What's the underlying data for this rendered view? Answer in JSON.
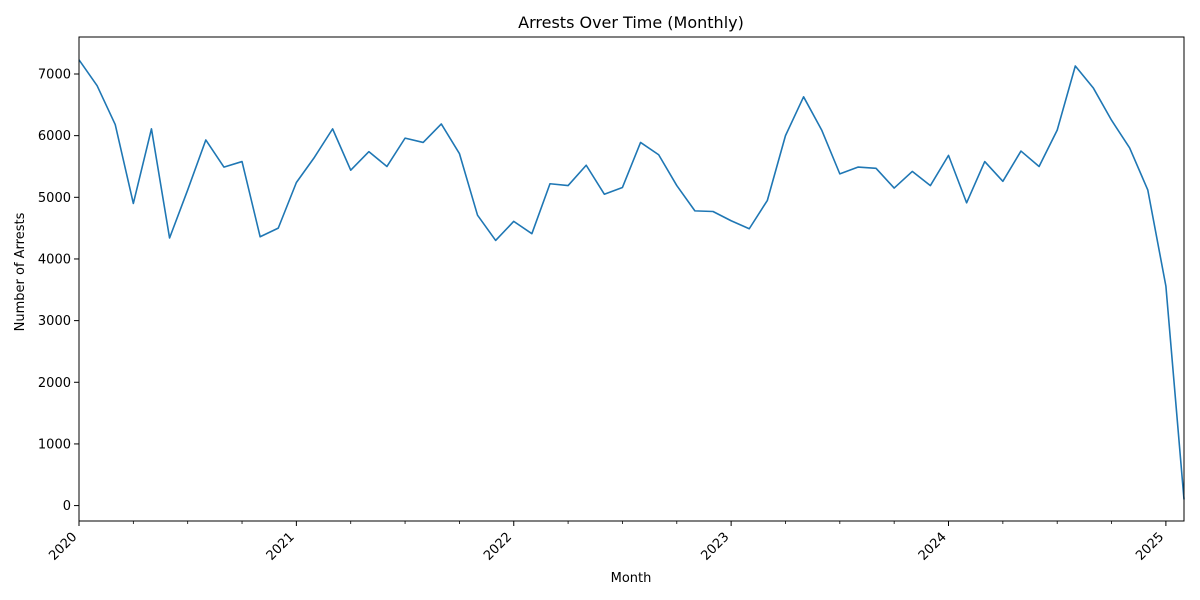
{
  "chart_data": {
    "type": "line",
    "title": "Arrests Over Time (Monthly)",
    "xlabel": "Month",
    "ylabel": "Number of Arrests",
    "x_tick_labels": [
      "2020",
      "2021",
      "2022",
      "2023",
      "2024",
      "2025"
    ],
    "y_tick_labels": [
      "0",
      "1000",
      "2000",
      "3000",
      "4000",
      "5000",
      "6000",
      "7000"
    ],
    "y_ticks": [
      0,
      1000,
      2000,
      3000,
      4000,
      5000,
      6000,
      7000
    ],
    "ylim": [
      -250,
      7600
    ],
    "xlim": [
      "2020-01",
      "2025-02"
    ],
    "grid": false,
    "series_color": "#1f77b4",
    "series": [
      {
        "x": [
          "2020-01",
          "2020-02",
          "2020-03",
          "2020-04",
          "2020-05",
          "2020-06",
          "2020-07",
          "2020-08",
          "2020-09",
          "2020-10",
          "2020-11",
          "2020-12",
          "2021-01",
          "2021-02",
          "2021-03",
          "2021-04",
          "2021-05",
          "2021-06",
          "2021-07",
          "2021-08",
          "2021-09",
          "2021-10",
          "2021-11",
          "2021-12",
          "2022-01",
          "2022-02",
          "2022-03",
          "2022-04",
          "2022-05",
          "2022-06",
          "2022-07",
          "2022-08",
          "2022-09",
          "2022-10",
          "2022-11",
          "2022-12",
          "2023-01",
          "2023-02",
          "2023-03",
          "2023-04",
          "2023-05",
          "2023-06",
          "2023-07",
          "2023-08",
          "2023-09",
          "2023-10",
          "2023-11",
          "2023-12",
          "2024-01",
          "2024-02",
          "2024-03",
          "2024-04",
          "2024-05",
          "2024-06",
          "2024-07",
          "2024-08",
          "2024-09",
          "2024-10",
          "2024-11",
          "2024-12",
          "2025-01",
          "2025-02"
        ],
        "values": [
          7230,
          6810,
          6180,
          4900,
          6110,
          4340,
          5120,
          5930,
          5490,
          5580,
          4360,
          4500,
          5240,
          5650,
          6110,
          5440,
          5740,
          5500,
          5960,
          5890,
          6190,
          5710,
          4710,
          4300,
          4610,
          4410,
          5220,
          5190,
          5520,
          5050,
          5160,
          5890,
          5690,
          5190,
          4780,
          4770,
          4620,
          4490,
          4950,
          6000,
          6630,
          6090,
          5380,
          5490,
          5470,
          5150,
          5420,
          5190,
          5680,
          4910,
          5580,
          5260,
          5750,
          5500,
          6090,
          7130,
          6770,
          6250,
          5800,
          5120,
          3560,
          100
        ]
      }
    ]
  }
}
